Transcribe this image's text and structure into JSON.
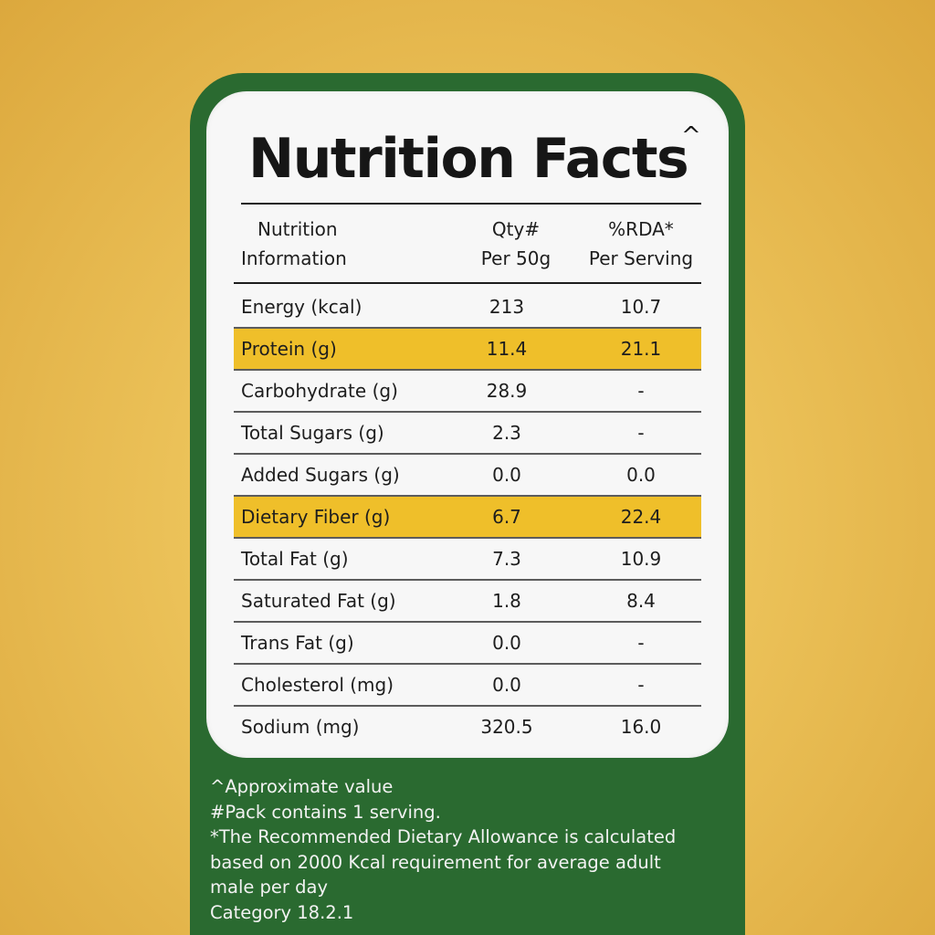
{
  "title": "Nutrition Facts",
  "title_mark": "^",
  "header": {
    "col1_line1": "Nutrition",
    "col1_line2": "Information",
    "col2_line1": "Qty#",
    "col2_line2": "Per 50g",
    "col3_line1": "%RDA*",
    "col3_line2": "Per Serving"
  },
  "rows": [
    {
      "name": "Energy (kcal)",
      "qty": "213",
      "rda": "10.7"
    },
    {
      "name": "Protein (g)",
      "qty": "11.4",
      "rda": "21.1"
    },
    {
      "name": "Carbohydrate (g)",
      "qty": "28.9",
      "rda": "-"
    },
    {
      "name": "Total Sugars (g)",
      "qty": "2.3",
      "rda": "-"
    },
    {
      "name": "Added Sugars (g)",
      "qty": "0.0",
      "rda": "0.0"
    },
    {
      "name": "Dietary Fiber (g)",
      "qty": "6.7",
      "rda": "22.4"
    },
    {
      "name": "Total Fat (g)",
      "qty": "7.3",
      "rda": "10.9"
    },
    {
      "name": "Saturated Fat (g)",
      "qty": "1.8",
      "rda": "8.4"
    },
    {
      "name": "Trans Fat (g)",
      "qty": "0.0",
      "rda": "-"
    },
    {
      "name": "Cholesterol (mg)",
      "qty": "0.0",
      "rda": "-"
    },
    {
      "name": "Sodium (mg)",
      "qty": "320.5",
      "rda": "16.0"
    }
  ],
  "footnotes": {
    "line1": "^Approximate value",
    "line2": "#Pack contains 1 serving.",
    "line3": "*The Recommended Dietary Allowance is calculated",
    "line4": "based on 2000 Kcal requirement for average adult",
    "line5": "male per day",
    "line6": "Category 18.2.1"
  },
  "colors": {
    "background": "#ebc158",
    "card": "#2a6a30",
    "panel": "#f7f7f7",
    "highlight": "#efbf2a",
    "text": "#1e1e1e",
    "footnote_text": "#f2f2f2"
  }
}
